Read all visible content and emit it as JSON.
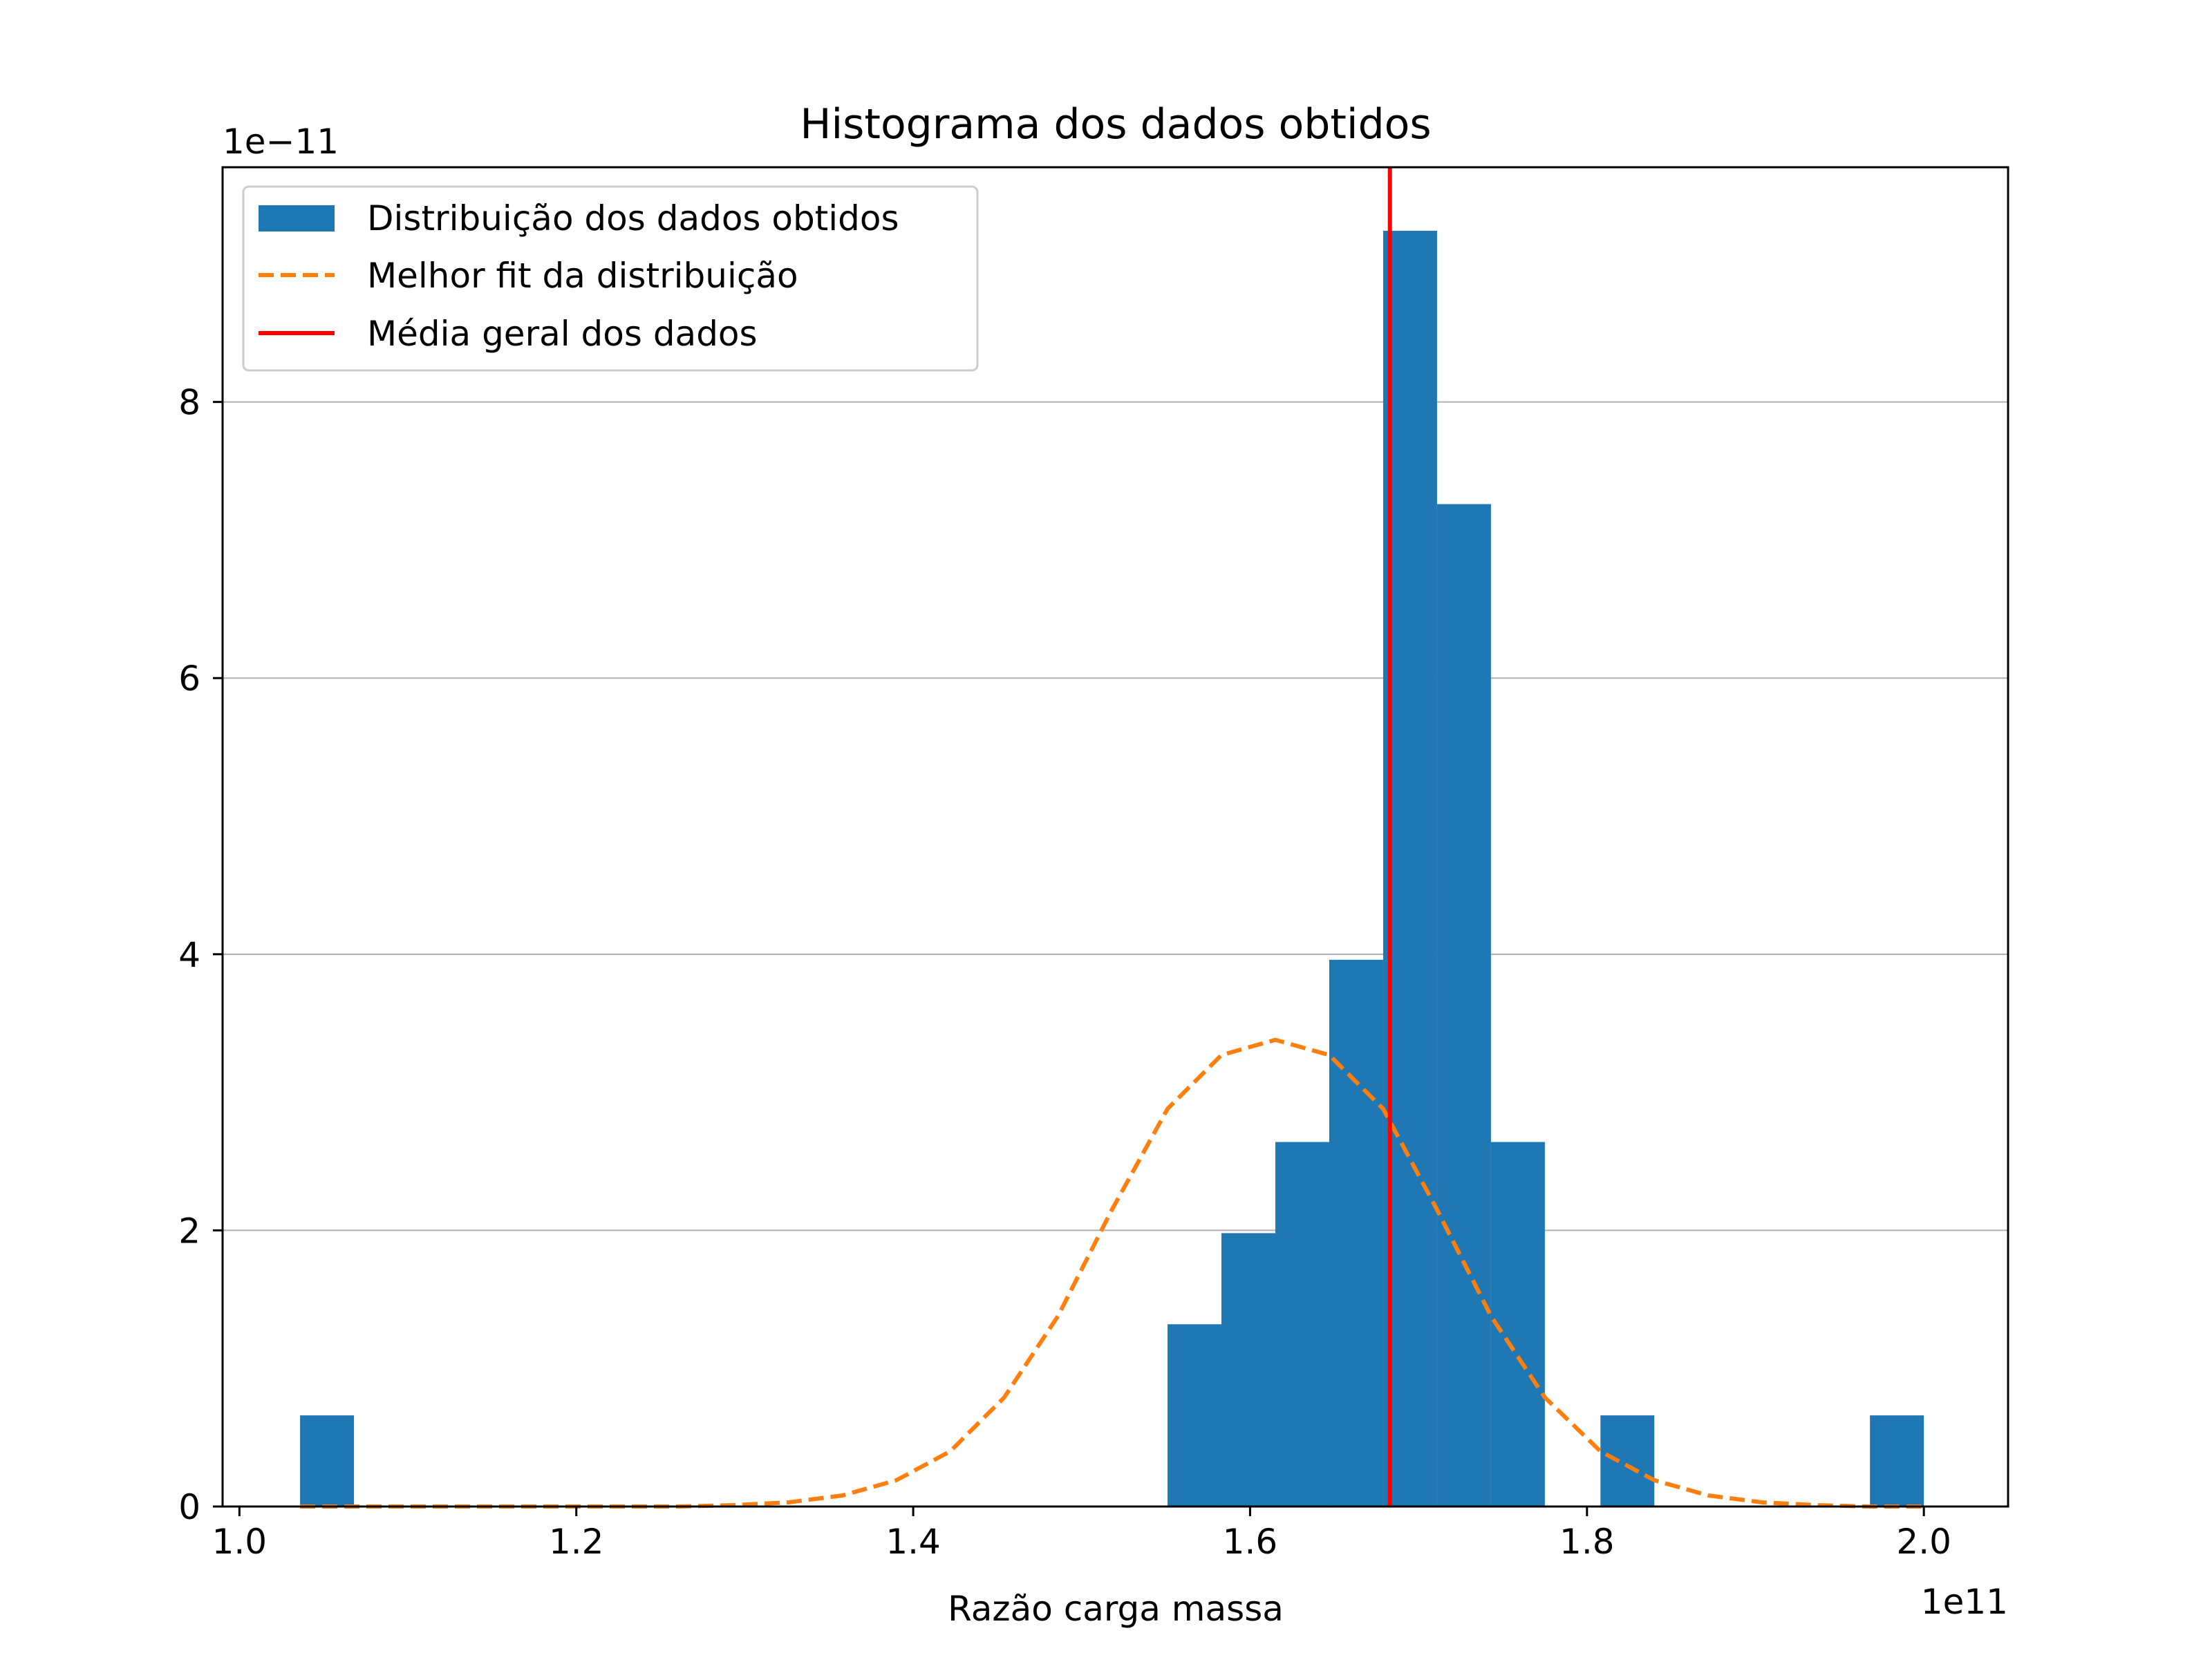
{
  "chart_data": {
    "type": "bar",
    "title": "Histograma dos dados obtidos",
    "xlabel": "Razão carga massa",
    "ylabel": "",
    "x_offset_text": "1e11",
    "y_offset_text": "1e−11",
    "xlim": [
      0.99,
      2.05
    ],
    "ylim": [
      0,
      9.7
    ],
    "x_scale": 100000000000.0,
    "y_scale": 1e-11,
    "grid": "horizontal",
    "legend_position": "top-left",
    "x_ticks": [
      {
        "value": 1.0,
        "label": "1.0"
      },
      {
        "value": 1.2,
        "label": "1.2"
      },
      {
        "value": 1.4,
        "label": "1.4"
      },
      {
        "value": 1.6,
        "label": "1.6"
      },
      {
        "value": 1.8,
        "label": "1.8"
      },
      {
        "value": 2.0,
        "label": "2.0"
      }
    ],
    "y_ticks": [
      {
        "value": 0,
        "label": "0"
      },
      {
        "value": 2,
        "label": "2"
      },
      {
        "value": 4,
        "label": "4"
      },
      {
        "value": 6,
        "label": "6"
      },
      {
        "value": 8,
        "label": "8"
      }
    ],
    "bin_edges": [
      1.036,
      1.068,
      1.101,
      1.133,
      1.165,
      1.197,
      1.229,
      1.261,
      1.293,
      1.326,
      1.358,
      1.39,
      1.422,
      1.454,
      1.486,
      1.518,
      1.551,
      1.583,
      1.615,
      1.647,
      1.679,
      1.711,
      1.743,
      1.775,
      1.808,
      1.84,
      1.872,
      1.904,
      1.936,
      1.968,
      2.0
    ],
    "series": [
      {
        "name": "Distribuição dos dados obtidos",
        "kind": "histogram",
        "color": "#1f77b4",
        "values": [
          0.66,
          0,
          0,
          0,
          0,
          0,
          0,
          0,
          0,
          0,
          0,
          0,
          0,
          0,
          0,
          0,
          1.32,
          1.98,
          2.64,
          3.96,
          9.24,
          7.26,
          2.64,
          0,
          0.66,
          0,
          0,
          0,
          0,
          0.66
        ]
      },
      {
        "name": "Melhor fit da distribuição",
        "kind": "line",
        "style": "dashed",
        "color": "#ff7f0e",
        "x": [
          1.036,
          1.068,
          1.101,
          1.133,
          1.165,
          1.197,
          1.229,
          1.261,
          1.293,
          1.326,
          1.358,
          1.39,
          1.422,
          1.454,
          1.486,
          1.518,
          1.551,
          1.583,
          1.615,
          1.647,
          1.679,
          1.711,
          1.743,
          1.775,
          1.808,
          1.84,
          1.872,
          1.904,
          1.936,
          1.968,
          2.0
        ],
        "y": [
          0.0,
          0.0,
          0.0,
          0.0,
          0.0,
          0.0,
          0.0,
          0.0,
          0.01,
          0.03,
          0.08,
          0.19,
          0.4,
          0.79,
          1.38,
          2.15,
          2.88,
          3.27,
          3.38,
          3.27,
          2.88,
          2.15,
          1.38,
          0.79,
          0.4,
          0.19,
          0.08,
          0.03,
          0.01,
          0.0,
          0.0
        ]
      },
      {
        "name": "Média geral dos dados",
        "kind": "vline",
        "color": "#ff0000",
        "x": 1.683
      }
    ]
  }
}
